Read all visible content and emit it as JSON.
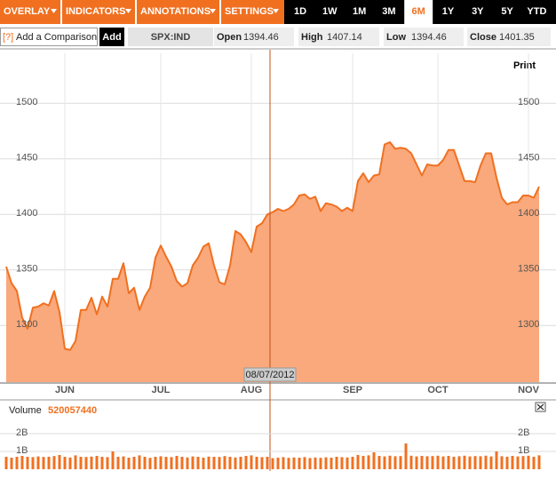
{
  "toolbar": {
    "menus": [
      "OVERLAY",
      "INDICATORS",
      "ANNOTATIONS",
      "SETTINGS"
    ],
    "periods": [
      "1D",
      "1W",
      "1M",
      "3M",
      "6M",
      "1Y",
      "3Y",
      "5Y",
      "YTD"
    ],
    "active_period": "6M"
  },
  "quote": {
    "help": "[?]",
    "comparison": "Add a Comparison",
    "add": "Add",
    "symbol": "SPX:IND",
    "fields": [
      {
        "label": "Open",
        "value": 1394.46
      },
      {
        "label": "High",
        "value": 1407.14
      },
      {
        "label": "Low",
        "value": 1394.46
      },
      {
        "label": "Close",
        "value": 1401.35
      }
    ]
  },
  "print": "Print",
  "chart_data": [
    {
      "type": "area",
      "color": "#f07020",
      "fill": "#f9a97c",
      "grid": true,
      "ylim": [
        1249,
        1545
      ],
      "yticks": [
        1300,
        1350,
        1400,
        1450,
        1500
      ],
      "crosshair_label": "08/07/2012",
      "categories": [
        null,
        null,
        null,
        null,
        null,
        null,
        null,
        null,
        null,
        null,
        null,
        "JUN",
        null,
        null,
        null,
        null,
        null,
        null,
        null,
        null,
        null,
        null,
        null,
        null,
        null,
        null,
        null,
        null,
        null,
        "JUL",
        null,
        null,
        null,
        null,
        null,
        null,
        null,
        null,
        null,
        null,
        null,
        null,
        null,
        null,
        null,
        null,
        "AUG",
        null,
        null,
        null,
        null,
        null,
        null,
        null,
        null,
        null,
        null,
        null,
        null,
        null,
        null,
        null,
        null,
        null,
        null,
        "SEP",
        null,
        null,
        null,
        null,
        null,
        null,
        null,
        null,
        null,
        null,
        null,
        null,
        null,
        null,
        null,
        "OCT",
        null,
        null,
        null,
        null,
        null,
        null,
        null,
        null,
        null,
        null,
        null,
        null,
        null,
        null,
        null,
        null,
        "NOV",
        null,
        null
      ],
      "values": [
        1353,
        1338,
        1331,
        1307,
        1297,
        1316,
        1317,
        1320,
        1318,
        1331,
        1312,
        1279,
        1278,
        1286,
        1314,
        1314,
        1325,
        1310,
        1326,
        1317,
        1342,
        1342,
        1356,
        1329,
        1334,
        1314,
        1326,
        1334,
        1361,
        1372,
        1362,
        1353,
        1340,
        1335,
        1338,
        1354,
        1361,
        1371,
        1374,
        1354,
        1339,
        1337,
        1354,
        1385,
        1382,
        1375,
        1366,
        1389,
        1392,
        1400,
        1402,
        1405,
        1403,
        1405,
        1409,
        1417,
        1418,
        1414,
        1416,
        1403,
        1410,
        1409,
        1407,
        1403,
        1406,
        1403,
        1430,
        1437,
        1429,
        1435,
        1436,
        1463,
        1465,
        1459,
        1460,
        1459,
        1455,
        1445,
        1435,
        1445,
        1444,
        1444,
        1449,
        1458,
        1458,
        1444,
        1430,
        1430,
        1429,
        1444,
        1455,
        1455,
        1433,
        1415,
        1409,
        1411,
        1411,
        1417,
        1417,
        1415,
        1425
      ]
    },
    {
      "type": "bar",
      "label": "Volume",
      "current": 520057440,
      "color": "#f07020",
      "ylim": [
        0,
        3300000000
      ],
      "yticks": [
        {
          "value": 1000000000,
          "label": "1B"
        },
        {
          "value": 2000000000,
          "label": "2B"
        }
      ],
      "values": [
        700000000.0,
        650000000.0,
        700000000.0,
        750000000.0,
        700000000.0,
        680000000.0,
        720000000.0,
        690000000.0,
        700000000.0,
        740000000.0,
        800000000.0,
        700000000.0,
        660000000.0,
        780000000.0,
        700000000.0,
        690000000.0,
        710000000.0,
        750000000.0,
        700000000.0,
        680000000.0,
        1000000000.0,
        700000000.0,
        720000000.0,
        650000000.0,
        700000000.0,
        780000000.0,
        700000000.0,
        640000000.0,
        700000000.0,
        730000000.0,
        700000000.0,
        680000000.0,
        750000000.0,
        700000000.0,
        660000000.0,
        720000000.0,
        700000000.0,
        650000000.0,
        710000000.0,
        700000000.0,
        690000000.0,
        740000000.0,
        700000000.0,
        660000000.0,
        700000000.0,
        750000000.0,
        780000000.0,
        700000000.0,
        680000000.0,
        700000000.0,
        620000000.0,
        650000000.0,
        680000000.0,
        640000000.0,
        660000000.0,
        650000000.0,
        680000000.0,
        630000000.0,
        660000000.0,
        640000000.0,
        670000000.0,
        650000000.0,
        700000000.0,
        680000000.0,
        660000000.0,
        700000000.0,
        800000000.0,
        750000000.0,
        780000000.0,
        950000000.0,
        750000000.0,
        720000000.0,
        760000000.0,
        730000000.0,
        740000000.0,
        1450000000.0,
        760000000.0,
        720000000.0,
        750000000.0,
        730000000.0,
        740000000.0,
        760000000.0,
        720000000.0,
        750000000.0,
        700000000.0,
        730000000.0,
        760000000.0,
        720000000.0,
        740000000.0,
        730000000.0,
        760000000.0,
        720000000.0,
        1000000000.0,
        730000000.0,
        700000000.0,
        750000000.0,
        720000000.0,
        740000000.0,
        760000000.0,
        700000000.0,
        780000000.0
      ]
    }
  ]
}
